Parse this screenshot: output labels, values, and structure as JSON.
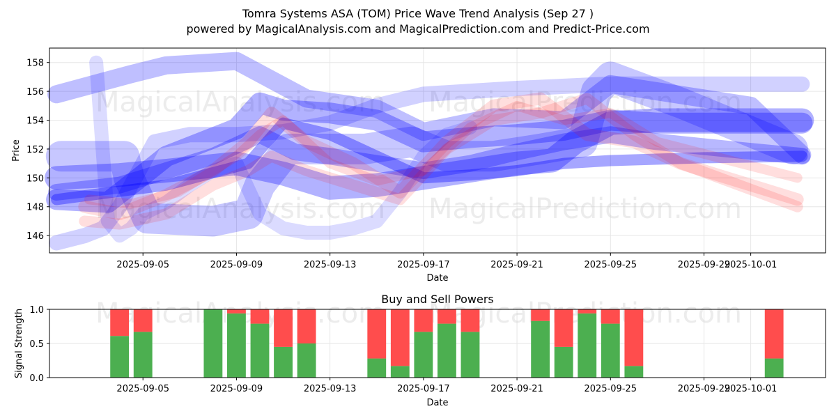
{
  "title_line1": "Tomra Systems ASA (TOM) Price Wave Trend Analysis (Sep 27 )",
  "title_line2": "powered by MagicalAnalysis.com and MagicalPrediction.com and Predict-Price.com",
  "watermarks": [
    "MagicalAnalysis.com",
    "MagicalPrediction.com"
  ],
  "colors": {
    "blue": "#0000ff",
    "red": "#ff0000",
    "buy": "#4caf50",
    "sell": "#ff4d4d"
  },
  "chart_data": [
    {
      "type": "line",
      "title": "Tomra Systems ASA (TOM) Price Wave Trend Analysis (Sep 27 )",
      "xlabel": "Date",
      "ylabel": "Price",
      "xlim": [
        -2.0,
        31.2
      ],
      "ylim": [
        144.8,
        159.0
      ],
      "grid": true,
      "xticks": [
        {
          "x": 2,
          "label": "2025-09-05"
        },
        {
          "x": 6,
          "label": "2025-09-09"
        },
        {
          "x": 10,
          "label": "2025-09-13"
        },
        {
          "x": 14,
          "label": "2025-09-17"
        },
        {
          "x": 18,
          "label": "2025-09-21"
        },
        {
          "x": 22,
          "label": "2025-09-25"
        },
        {
          "x": 26,
          "label": "2025-09-29"
        },
        {
          "x": 28,
          "label": "2025-10-01"
        }
      ],
      "yticks": [
        146,
        148,
        150,
        152,
        154,
        156,
        158
      ],
      "series": [
        {
          "name": "wave-blue-1",
          "color": "blue",
          "width": 30,
          "opacity": 0.3,
          "x": [
            -1.7,
            0.5,
            2,
            3,
            6,
            7,
            8,
            10,
            12,
            14,
            16,
            18,
            20,
            22,
            24,
            26,
            28,
            30.2
          ],
          "y": [
            148.5,
            148.3,
            150.2,
            151.5,
            153.4,
            155.2,
            154.7,
            154.5,
            154.0,
            152.5,
            152.8,
            153.0,
            153.3,
            154.0,
            153.8,
            153.8,
            153.8,
            153.8
          ]
        },
        {
          "name": "wave-blue-2",
          "color": "blue",
          "width": 24,
          "opacity": 0.28,
          "x": [
            -1.7,
            1,
            3,
            5,
            7,
            8.5,
            10,
            12,
            14,
            16,
            18,
            20,
            22,
            24,
            27,
            30.2
          ],
          "y": [
            149.0,
            149.5,
            150.5,
            151.5,
            153.0,
            151.8,
            151.5,
            151.0,
            150.5,
            151.0,
            151.8,
            152.5,
            153.0,
            152.5,
            152.0,
            151.5
          ]
        },
        {
          "name": "wave-blue-3",
          "color": "blue",
          "width": 34,
          "opacity": 0.3,
          "x": [
            -1.7,
            1,
            3,
            6,
            8,
            10,
            12,
            14,
            16,
            18,
            19.5,
            20.5,
            22,
            24,
            27,
            30.2
          ],
          "y": [
            150.0,
            150.2,
            150.5,
            151.0,
            150.3,
            149.3,
            149.5,
            150.0,
            150.5,
            151.0,
            151.2,
            152.5,
            153.8,
            154.0,
            154.0,
            154.0
          ]
        },
        {
          "name": "wave-blue-4",
          "color": "blue",
          "width": 26,
          "opacity": 0.25,
          "x": [
            -1.7,
            1.5,
            3,
            6,
            9,
            12,
            14,
            17,
            20,
            22,
            24,
            28,
            30.2
          ],
          "y": [
            155.8,
            157.2,
            157.8,
            158.1,
            155.5,
            154.8,
            153.2,
            154.2,
            154.0,
            156.5,
            156.0,
            155.0,
            151.6
          ]
        },
        {
          "name": "wave-blue-5",
          "color": "blue",
          "width": 44,
          "opacity": 0.22,
          "x": [
            -1.5,
            1.2,
            1.4,
            2.2,
            5,
            6.5,
            7,
            8.2,
            11.5,
            13.5,
            15,
            17,
            19,
            20.8,
            21.4,
            22,
            25,
            29.8
          ],
          "y": [
            151.5,
            151.5,
            150.0,
            147.2,
            147.0,
            147.5,
            149.5,
            152.0,
            152.0,
            152.5,
            151.5,
            151.5,
            152.0,
            152.5,
            156.0,
            157.0,
            155.2,
            152.0
          ]
        },
        {
          "name": "wave-blue-6",
          "color": "blue",
          "width": 20,
          "opacity": 0.14,
          "x": [
            0,
            0.5,
            1,
            1.5,
            2,
            3,
            4,
            5,
            6,
            7,
            8,
            9,
            10,
            11,
            12,
            13,
            14,
            15,
            16
          ],
          "y": [
            158.0,
            147.0,
            146.0,
            146.5,
            147.5,
            148.3,
            149.5,
            150.5,
            151.0,
            147.5,
            146.5,
            146.2,
            146.2,
            146.5,
            147.0,
            149.0,
            151.5,
            153.0,
            153.5
          ]
        },
        {
          "name": "wave-blue-7",
          "color": "blue",
          "width": 22,
          "opacity": 0.18,
          "x": [
            -1.7,
            -0.5,
            0.3,
            1,
            2,
            2.5,
            4,
            6,
            8,
            10,
            12,
            14,
            16,
            18,
            22,
            30.2
          ],
          "y": [
            145.5,
            146.0,
            146.5,
            148.0,
            151.0,
            152.5,
            153.0,
            153.0,
            153.2,
            153.8,
            155.0,
            155.8,
            156.0,
            156.2,
            156.5,
            156.5
          ]
        },
        {
          "name": "wave-blue-8",
          "color": "blue",
          "width": 16,
          "opacity": 0.35,
          "x": [
            -1.7,
            3,
            6.5,
            8,
            10,
            12,
            14,
            16,
            18,
            20,
            22,
            26,
            30.2
          ],
          "y": [
            148.5,
            149.5,
            151.0,
            153.8,
            153.0,
            151.5,
            150.0,
            150.2,
            150.5,
            151.0,
            151.2,
            151.4,
            151.5
          ]
        },
        {
          "name": "wave-red-1",
          "color": "red",
          "width": 18,
          "opacity": 0.13,
          "x": [
            -0.5,
            1,
            3,
            5,
            6.5,
            7.5,
            9,
            11,
            13,
            15,
            17,
            19,
            21,
            23,
            25,
            30
          ],
          "y": [
            148.0,
            147.5,
            148.8,
            150.5,
            152.5,
            154.5,
            152.5,
            151.0,
            149.0,
            152.5,
            155.0,
            155.5,
            153.0,
            152.5,
            151.0,
            148.5
          ]
        },
        {
          "name": "wave-red-2",
          "color": "red",
          "width": 16,
          "opacity": 0.13,
          "x": [
            -0.5,
            1,
            3,
            5,
            6.5,
            7.5,
            9,
            11,
            13,
            15,
            17,
            19,
            21,
            23,
            25,
            30
          ],
          "y": [
            147.0,
            146.8,
            147.5,
            149.5,
            150.5,
            151.5,
            150.5,
            149.5,
            148.5,
            152.0,
            154.0,
            154.5,
            155.5,
            153.0,
            151.0,
            148.0
          ]
        },
        {
          "name": "wave-red-3",
          "color": "red",
          "width": 14,
          "opacity": 0.13,
          "x": [
            -0.3,
            1.5,
            3.5,
            6,
            7,
            8,
            10,
            12,
            14,
            16,
            18,
            20,
            22,
            24,
            30
          ],
          "y": [
            148.5,
            148.2,
            149.0,
            151.5,
            153.0,
            154.0,
            151.0,
            149.8,
            150.5,
            153.5,
            155.0,
            154.0,
            154.5,
            152.5,
            150.0
          ]
        }
      ]
    },
    {
      "type": "bar",
      "title": "Buy and Sell Powers",
      "xlabel": "Date",
      "ylabel": "Signal Strength",
      "xlim": [
        -2.0,
        31.2
      ],
      "ylim": [
        0,
        1.0
      ],
      "yticks": [
        0.0,
        0.5,
        1.0
      ],
      "grid": true,
      "xticks": [
        {
          "x": 2,
          "label": "2025-09-05"
        },
        {
          "x": 6,
          "label": "2025-09-09"
        },
        {
          "x": 10,
          "label": "2025-09-13"
        },
        {
          "x": 14,
          "label": "2025-09-17"
        },
        {
          "x": 18,
          "label": "2025-09-21"
        },
        {
          "x": 22,
          "label": "2025-09-25"
        },
        {
          "x": 26,
          "label": "2025-09-29"
        },
        {
          "x": 28,
          "label": "2025-10-01"
        }
      ],
      "bars": [
        {
          "x": 1,
          "buy": 0.61,
          "sell": 0.39
        },
        {
          "x": 2,
          "buy": 0.67,
          "sell": 0.33
        },
        {
          "x": 5,
          "buy": 1.0,
          "sell": 0.0
        },
        {
          "x": 6,
          "buy": 0.94,
          "sell": 0.06
        },
        {
          "x": 7,
          "buy": 0.79,
          "sell": 0.21
        },
        {
          "x": 8,
          "buy": 0.45,
          "sell": 0.55
        },
        {
          "x": 9,
          "buy": 0.5,
          "sell": 0.5
        },
        {
          "x": 12,
          "buy": 0.28,
          "sell": 0.72
        },
        {
          "x": 13,
          "buy": 0.17,
          "sell": 0.83
        },
        {
          "x": 14,
          "buy": 0.67,
          "sell": 0.33
        },
        {
          "x": 15,
          "buy": 0.79,
          "sell": 0.21
        },
        {
          "x": 16,
          "buy": 0.67,
          "sell": 0.33
        },
        {
          "x": 19,
          "buy": 0.83,
          "sell": 0.17
        },
        {
          "x": 20,
          "buy": 0.45,
          "sell": 0.55
        },
        {
          "x": 21,
          "buy": 0.94,
          "sell": 0.06
        },
        {
          "x": 22,
          "buy": 0.79,
          "sell": 0.21
        },
        {
          "x": 23,
          "buy": 0.17,
          "sell": 0.83
        },
        {
          "x": 29,
          "buy": 0.28,
          "sell": 0.72
        }
      ]
    }
  ]
}
